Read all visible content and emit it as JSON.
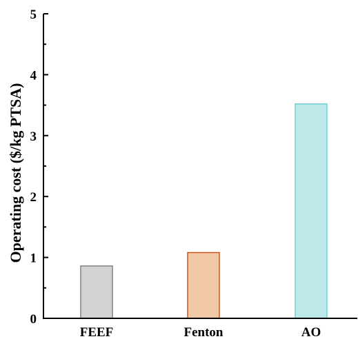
{
  "chart_data": {
    "type": "bar",
    "categories": [
      "FEEF",
      "Fenton",
      "AO"
    ],
    "values": [
      0.86,
      1.08,
      3.52
    ],
    "colors": [
      {
        "fill": "#d3d3d3",
        "stroke": "#7f7f7f"
      },
      {
        "fill": "#f2c9a6",
        "stroke": "#c8561c"
      },
      {
        "fill": "#bde9ea",
        "stroke": "#6fd0d2"
      }
    ],
    "xlabel": "",
    "ylabel": "Operating cost ($/kg PTSA)",
    "ylim": [
      0,
      5
    ],
    "yticks": [
      0,
      1,
      2,
      3,
      4,
      5
    ],
    "grid": false,
    "legend": "none"
  }
}
